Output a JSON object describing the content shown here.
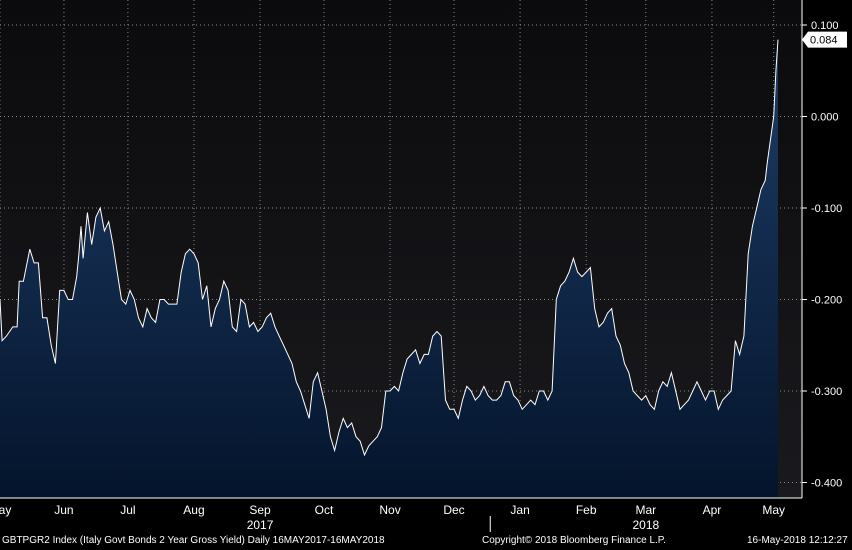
{
  "chart_data": {
    "type": "area",
    "ylim": [
      -0.42,
      0.1
    ],
    "yticks": [
      "0.100",
      "0.000",
      "-0.100",
      "-0.200",
      "-0.300",
      "-0.400"
    ],
    "ytick_values": [
      0.1,
      0.0,
      -0.1,
      -0.2,
      -0.3,
      -0.4
    ],
    "last_value_label": "0.084",
    "last_value": 0.084,
    "x_start": "2017-05-16",
    "x_end": "2018-05-16",
    "months": [
      {
        "label": "May",
        "date": "2017-05-16"
      },
      {
        "label": "Jun",
        "date": "2017-06-15"
      },
      {
        "label": "Jul",
        "date": "2017-07-15"
      },
      {
        "label": "Aug",
        "date": "2017-08-15"
      },
      {
        "label": "Sep",
        "date": "2017-09-15"
      },
      {
        "label": "Oct",
        "date": "2017-10-15"
      },
      {
        "label": "Nov",
        "date": "2017-11-15"
      },
      {
        "label": "Dec",
        "date": "2017-12-15"
      },
      {
        "label": "Jan",
        "date": "2018-01-15"
      },
      {
        "label": "Feb",
        "date": "2018-02-15"
      },
      {
        "label": "Mar",
        "date": "2018-03-15"
      },
      {
        "label": "Apr",
        "date": "2018-04-15"
      },
      {
        "label": "May",
        "date": "2018-05-14"
      }
    ],
    "years": [
      {
        "label": "2017",
        "date": "2017-09-15"
      },
      {
        "label": "2018",
        "date": "2018-03-15"
      }
    ],
    "year_divider_date": "2018-01-01",
    "grid": true,
    "colors": {
      "line": "#ffffff",
      "fill_top": "#1e3d66",
      "fill_bottom": "#04142c",
      "plot_bg_top": "#0b0b0d",
      "plot_bg_bottom": "#1a1a1e",
      "grid": "#8a8a8a"
    },
    "series": [
      {
        "points": [
          [
            "2017-05-16",
            -0.2
          ],
          [
            "2017-05-17",
            -0.245
          ],
          [
            "2017-05-19",
            -0.24
          ],
          [
            "2017-05-22",
            -0.23
          ],
          [
            "2017-05-24",
            -0.23
          ],
          [
            "2017-05-25",
            -0.18
          ],
          [
            "2017-05-27",
            -0.18
          ],
          [
            "2017-05-30",
            -0.145
          ],
          [
            "2017-06-01",
            -0.16
          ],
          [
            "2017-06-03",
            -0.16
          ],
          [
            "2017-06-05",
            -0.22
          ],
          [
            "2017-06-07",
            -0.22
          ],
          [
            "2017-06-09",
            -0.25
          ],
          [
            "2017-06-11",
            -0.27
          ],
          [
            "2017-06-13",
            -0.19
          ],
          [
            "2017-06-15",
            -0.19
          ],
          [
            "2017-06-17",
            -0.2
          ],
          [
            "2017-06-19",
            -0.2
          ],
          [
            "2017-06-21",
            -0.175
          ],
          [
            "2017-06-22",
            -0.15
          ],
          [
            "2017-06-23",
            -0.12
          ],
          [
            "2017-06-24",
            -0.155
          ],
          [
            "2017-06-26",
            -0.105
          ],
          [
            "2017-06-28",
            -0.14
          ],
          [
            "2017-06-30",
            -0.11
          ],
          [
            "2017-07-02",
            -0.1
          ],
          [
            "2017-07-04",
            -0.125
          ],
          [
            "2017-07-06",
            -0.115
          ],
          [
            "2017-07-08",
            -0.14
          ],
          [
            "2017-07-10",
            -0.17
          ],
          [
            "2017-07-12",
            -0.2
          ],
          [
            "2017-07-14",
            -0.205
          ],
          [
            "2017-07-16",
            -0.19
          ],
          [
            "2017-07-18",
            -0.2
          ],
          [
            "2017-07-20",
            -0.22
          ],
          [
            "2017-07-22",
            -0.23
          ],
          [
            "2017-07-24",
            -0.21
          ],
          [
            "2017-07-26",
            -0.22
          ],
          [
            "2017-07-28",
            -0.225
          ],
          [
            "2017-07-30",
            -0.2
          ],
          [
            "2017-08-01",
            -0.2
          ],
          [
            "2017-08-03",
            -0.205
          ],
          [
            "2017-08-05",
            -0.205
          ],
          [
            "2017-08-07",
            -0.205
          ],
          [
            "2017-08-09",
            -0.17
          ],
          [
            "2017-08-11",
            -0.15
          ],
          [
            "2017-08-13",
            -0.145
          ],
          [
            "2017-08-15",
            -0.15
          ],
          [
            "2017-08-17",
            -0.16
          ],
          [
            "2017-08-19",
            -0.2
          ],
          [
            "2017-08-21",
            -0.185
          ],
          [
            "2017-08-23",
            -0.23
          ],
          [
            "2017-08-25",
            -0.21
          ],
          [
            "2017-08-27",
            -0.2
          ],
          [
            "2017-08-29",
            -0.18
          ],
          [
            "2017-08-31",
            -0.19
          ],
          [
            "2017-09-02",
            -0.23
          ],
          [
            "2017-09-04",
            -0.235
          ],
          [
            "2017-09-06",
            -0.2
          ],
          [
            "2017-09-08",
            -0.205
          ],
          [
            "2017-09-10",
            -0.23
          ],
          [
            "2017-09-12",
            -0.225
          ],
          [
            "2017-09-14",
            -0.235
          ],
          [
            "2017-09-16",
            -0.23
          ],
          [
            "2017-09-18",
            -0.22
          ],
          [
            "2017-09-20",
            -0.215
          ],
          [
            "2017-09-22",
            -0.23
          ],
          [
            "2017-09-24",
            -0.24
          ],
          [
            "2017-09-26",
            -0.25
          ],
          [
            "2017-09-28",
            -0.26
          ],
          [
            "2017-09-30",
            -0.27
          ],
          [
            "2017-10-02",
            -0.29
          ],
          [
            "2017-10-04",
            -0.3
          ],
          [
            "2017-10-06",
            -0.315
          ],
          [
            "2017-10-08",
            -0.33
          ],
          [
            "2017-10-10",
            -0.29
          ],
          [
            "2017-10-12",
            -0.28
          ],
          [
            "2017-10-14",
            -0.3
          ],
          [
            "2017-10-16",
            -0.32
          ],
          [
            "2017-10-18",
            -0.35
          ],
          [
            "2017-10-20",
            -0.365
          ],
          [
            "2017-10-22",
            -0.345
          ],
          [
            "2017-10-24",
            -0.33
          ],
          [
            "2017-10-26",
            -0.34
          ],
          [
            "2017-10-28",
            -0.335
          ],
          [
            "2017-10-30",
            -0.35
          ],
          [
            "2017-11-01",
            -0.355
          ],
          [
            "2017-11-03",
            -0.37
          ],
          [
            "2017-11-05",
            -0.36
          ],
          [
            "2017-11-07",
            -0.355
          ],
          [
            "2017-11-09",
            -0.35
          ],
          [
            "2017-11-11",
            -0.34
          ],
          [
            "2017-11-13",
            -0.3
          ],
          [
            "2017-11-15",
            -0.3
          ],
          [
            "2017-11-17",
            -0.295
          ],
          [
            "2017-11-19",
            -0.3
          ],
          [
            "2017-11-21",
            -0.28
          ],
          [
            "2017-11-23",
            -0.265
          ],
          [
            "2017-11-25",
            -0.26
          ],
          [
            "2017-11-27",
            -0.255
          ],
          [
            "2017-11-29",
            -0.27
          ],
          [
            "2017-12-01",
            -0.26
          ],
          [
            "2017-12-03",
            -0.26
          ],
          [
            "2017-12-05",
            -0.24
          ],
          [
            "2017-12-07",
            -0.235
          ],
          [
            "2017-12-09",
            -0.24
          ],
          [
            "2017-12-11",
            -0.31
          ],
          [
            "2017-12-13",
            -0.32
          ],
          [
            "2017-12-15",
            -0.32
          ],
          [
            "2017-12-17",
            -0.33
          ],
          [
            "2017-12-19",
            -0.31
          ],
          [
            "2017-12-21",
            -0.295
          ],
          [
            "2017-12-23",
            -0.3
          ],
          [
            "2017-12-25",
            -0.31
          ],
          [
            "2017-12-27",
            -0.305
          ],
          [
            "2017-12-29",
            -0.295
          ],
          [
            "2017-12-31",
            -0.305
          ],
          [
            "2018-01-02",
            -0.31
          ],
          [
            "2018-01-04",
            -0.31
          ],
          [
            "2018-01-06",
            -0.305
          ],
          [
            "2018-01-08",
            -0.29
          ],
          [
            "2018-01-10",
            -0.29
          ],
          [
            "2018-01-12",
            -0.305
          ],
          [
            "2018-01-14",
            -0.31
          ],
          [
            "2018-01-16",
            -0.32
          ],
          [
            "2018-01-18",
            -0.315
          ],
          [
            "2018-01-20",
            -0.31
          ],
          [
            "2018-01-22",
            -0.315
          ],
          [
            "2018-01-24",
            -0.3
          ],
          [
            "2018-01-26",
            -0.3
          ],
          [
            "2018-01-28",
            -0.31
          ],
          [
            "2018-01-30",
            -0.3
          ],
          [
            "2018-02-01",
            -0.2
          ],
          [
            "2018-02-03",
            -0.185
          ],
          [
            "2018-02-05",
            -0.18
          ],
          [
            "2018-02-07",
            -0.17
          ],
          [
            "2018-02-09",
            -0.155
          ],
          [
            "2018-02-11",
            -0.17
          ],
          [
            "2018-02-13",
            -0.175
          ],
          [
            "2018-02-15",
            -0.17
          ],
          [
            "2018-02-17",
            -0.165
          ],
          [
            "2018-02-19",
            -0.21
          ],
          [
            "2018-02-21",
            -0.23
          ],
          [
            "2018-02-23",
            -0.225
          ],
          [
            "2018-02-25",
            -0.215
          ],
          [
            "2018-02-27",
            -0.21
          ],
          [
            "2018-03-01",
            -0.24
          ],
          [
            "2018-03-03",
            -0.25
          ],
          [
            "2018-03-05",
            -0.27
          ],
          [
            "2018-03-07",
            -0.28
          ],
          [
            "2018-03-09",
            -0.3
          ],
          [
            "2018-03-11",
            -0.305
          ],
          [
            "2018-03-13",
            -0.31
          ],
          [
            "2018-03-15",
            -0.305
          ],
          [
            "2018-03-17",
            -0.315
          ],
          [
            "2018-03-19",
            -0.32
          ],
          [
            "2018-03-21",
            -0.3
          ],
          [
            "2018-03-23",
            -0.29
          ],
          [
            "2018-03-25",
            -0.295
          ],
          [
            "2018-03-27",
            -0.28
          ],
          [
            "2018-03-29",
            -0.3
          ],
          [
            "2018-03-31",
            -0.32
          ],
          [
            "2018-04-02",
            -0.315
          ],
          [
            "2018-04-04",
            -0.31
          ],
          [
            "2018-04-06",
            -0.3
          ],
          [
            "2018-04-08",
            -0.29
          ],
          [
            "2018-04-10",
            -0.3
          ],
          [
            "2018-04-12",
            -0.31
          ],
          [
            "2018-04-14",
            -0.3
          ],
          [
            "2018-04-16",
            -0.3
          ],
          [
            "2018-04-18",
            -0.32
          ],
          [
            "2018-04-20",
            -0.31
          ],
          [
            "2018-04-22",
            -0.305
          ],
          [
            "2018-04-24",
            -0.3
          ],
          [
            "2018-04-26",
            -0.245
          ],
          [
            "2018-04-28",
            -0.26
          ],
          [
            "2018-04-30",
            -0.24
          ],
          [
            "2018-05-02",
            -0.15
          ],
          [
            "2018-05-04",
            -0.12
          ],
          [
            "2018-05-06",
            -0.1
          ],
          [
            "2018-05-08",
            -0.08
          ],
          [
            "2018-05-10",
            -0.07
          ],
          [
            "2018-05-11",
            -0.05
          ],
          [
            "2018-05-14",
            0.0
          ],
          [
            "2018-05-15",
            0.05
          ],
          [
            "2018-05-16",
            0.084
          ]
        ]
      }
    ]
  },
  "footer": {
    "left": "GBTPGR2 Index (Italy Govt Bonds 2 Year Gross Yield)  Daily 16MAY2017-16MAY2018",
    "center": "Copyright© 2018 Bloomberg Finance L.P.",
    "right": "16-May-2018 12:12:27"
  }
}
